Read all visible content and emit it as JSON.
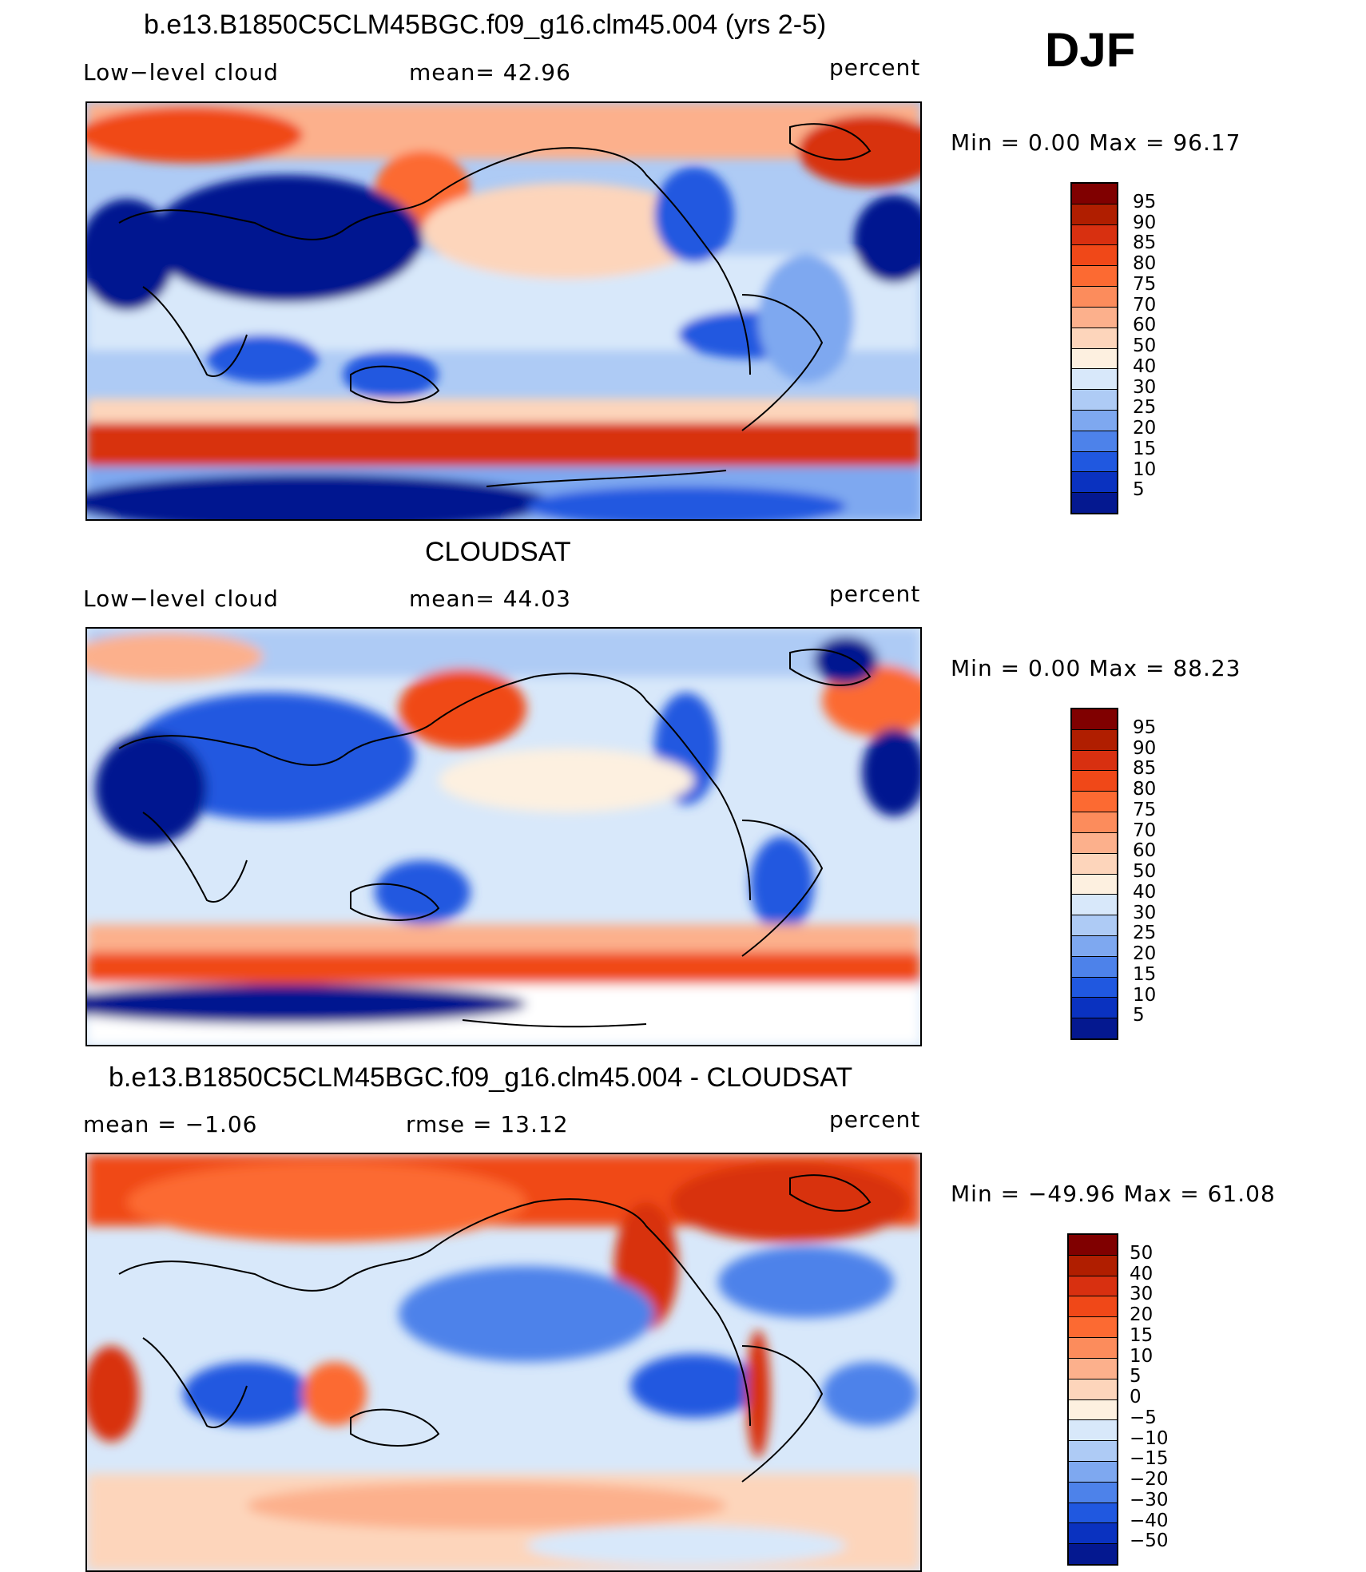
{
  "season": "DJF",
  "panels": [
    {
      "id": "model",
      "title": "b.e13.B1850C5CLM45BGC.f09_g16.clm45.004 (yrs 2-5)",
      "left_label": "Low−level cloud",
      "mid_label": "mean=   42.96",
      "right_label": "percent",
      "minmax": "Min =     0.00  Max =    96.17",
      "colorbar": {
        "labels": [
          "95",
          "90",
          "85",
          "80",
          "75",
          "70",
          "60",
          "50",
          "40",
          "30",
          "25",
          "20",
          "15",
          "10",
          "5"
        ],
        "colors": [
          "#800000",
          "#b01e00",
          "#d83010",
          "#f04818",
          "#fc6a32",
          "#fc8c5c",
          "#fcb08c",
          "#fdd5bb",
          "#fdf0e0",
          "#d8e8fa",
          "#aecbf5",
          "#7ea8f0",
          "#4d82ea",
          "#2058e0",
          "#0a32c0",
          "#041890"
        ]
      }
    },
    {
      "id": "obs",
      "title": "CLOUDSAT",
      "left_label": "Low−level cloud",
      "mid_label": "mean=   44.03",
      "right_label": "percent",
      "minmax": "Min =     0.00  Max =    88.23",
      "colorbar": {
        "labels": [
          "95",
          "90",
          "85",
          "80",
          "75",
          "70",
          "60",
          "50",
          "40",
          "30",
          "25",
          "20",
          "15",
          "10",
          "5"
        ],
        "colors": [
          "#800000",
          "#b01e00",
          "#d83010",
          "#f04818",
          "#fc6a32",
          "#fc8c5c",
          "#fcb08c",
          "#fdd5bb",
          "#fdf0e0",
          "#d8e8fa",
          "#aecbf5",
          "#7ea8f0",
          "#4d82ea",
          "#2058e0",
          "#0a32c0",
          "#041890"
        ]
      }
    },
    {
      "id": "diff",
      "title": "b.e13.B1850C5CLM45BGC.f09_g16.clm45.004 - CLOUDSAT",
      "left_label": "mean =    −1.06",
      "mid_label": "rmse =    13.12",
      "right_label": "percent",
      "minmax": "Min = −49.96  Max =    61.08",
      "colorbar": {
        "labels": [
          "50",
          "40",
          "30",
          "20",
          "15",
          "10",
          "5",
          "0",
          "−5",
          "−10",
          "−15",
          "−20",
          "−30",
          "−40",
          "−50"
        ],
        "colors": [
          "#800000",
          "#b01e00",
          "#d83010",
          "#f04818",
          "#fc6a32",
          "#fc8c5c",
          "#fcb08c",
          "#fdd5bb",
          "#fdf0e0",
          "#d8e8fa",
          "#aecbf5",
          "#7ea8f0",
          "#4d82ea",
          "#2058e0",
          "#0a32c0",
          "#041890"
        ]
      }
    }
  ]
}
